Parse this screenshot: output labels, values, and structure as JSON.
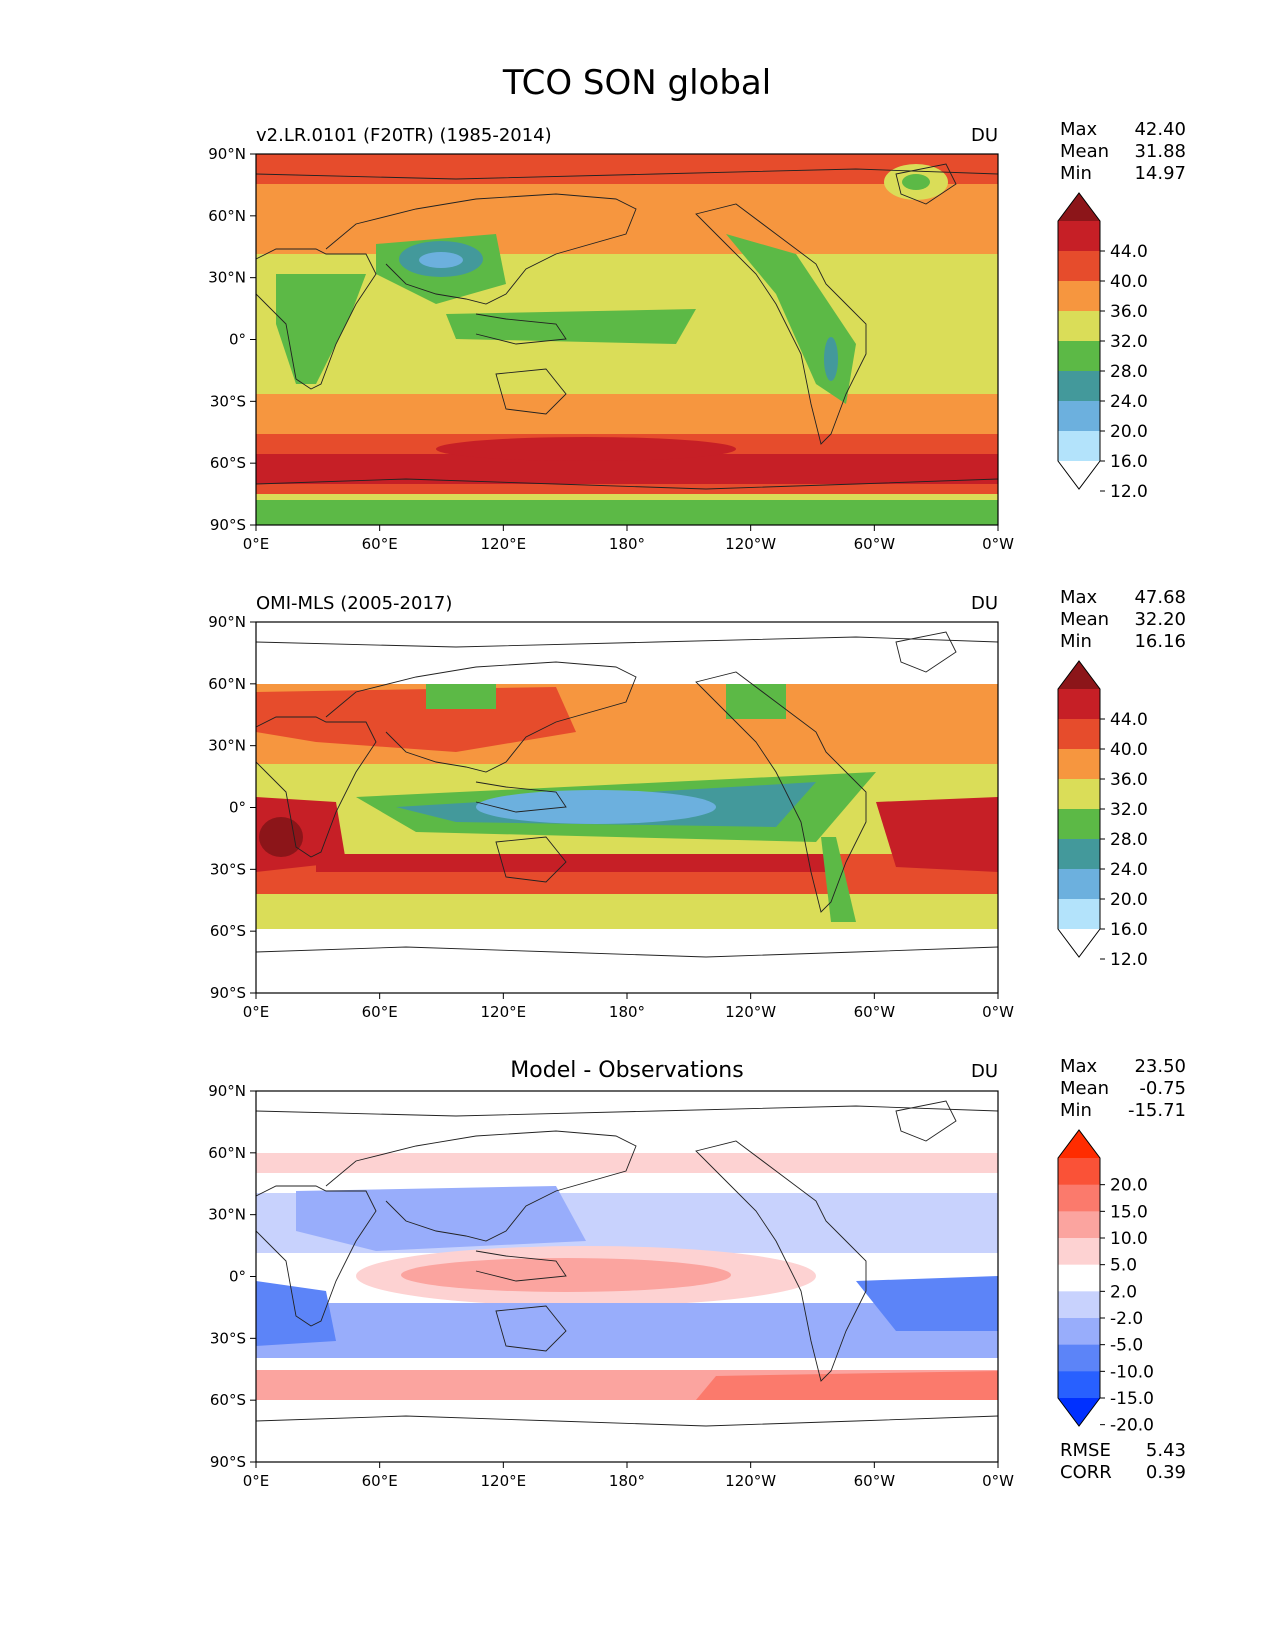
{
  "figure_title": "TCO SON global",
  "colors": {
    "model_levels": [
      "#ffffff",
      "#b3e3fb",
      "#6cb0de",
      "#43999b",
      "#5cb946",
      "#dadd58",
      "#f6963f",
      "#e64c2c",
      "#c61f26",
      "#8c1519"
    ],
    "diff_levels": [
      "#0030ff",
      "#2860ff",
      "#5c84f8",
      "#98adfb",
      "#c8d2fd",
      "#ffffff",
      "#fdd2d2",
      "#fba49f",
      "#fb7a6c",
      "#fa5237",
      "#ff2c00"
    ],
    "coast": "#222222",
    "axis": "#000000"
  },
  "chart_data": [
    {
      "type": "heatmap",
      "title": "v2.LR.0101 (F20TR) (1985-2014)",
      "units": "DU",
      "stats": [
        {
          "label": "Max",
          "value": "42.40"
        },
        {
          "label": "Mean",
          "value": "31.88"
        },
        {
          "label": "Min",
          "value": "14.97"
        }
      ],
      "colorbar_ticks": [
        "44.0",
        "40.0",
        "36.0",
        "32.0",
        "28.0",
        "24.0",
        "20.0",
        "16.0",
        "12.0"
      ],
      "colorbar_levels": [
        12,
        16,
        20,
        24,
        28,
        32,
        36,
        40,
        44
      ],
      "xticks": [
        "0°E",
        "60°E",
        "120°E",
        "180°",
        "120°W",
        "60°W",
        "0°W"
      ],
      "yticks": [
        "90°N",
        "60°N",
        "30°N",
        "0°",
        "30°S",
        "60°S",
        "90°S"
      ],
      "xlim": [
        0,
        360
      ],
      "ylim": [
        -90,
        90
      ]
    },
    {
      "type": "heatmap",
      "title": "OMI-MLS (2005-2017)",
      "units": "DU",
      "stats": [
        {
          "label": "Max",
          "value": "47.68"
        },
        {
          "label": "Mean",
          "value": "32.20"
        },
        {
          "label": "Min",
          "value": "16.16"
        }
      ],
      "colorbar_ticks": [
        "44.0",
        "40.0",
        "36.0",
        "32.0",
        "28.0",
        "24.0",
        "20.0",
        "16.0",
        "12.0"
      ],
      "colorbar_levels": [
        12,
        16,
        20,
        24,
        28,
        32,
        36,
        40,
        44
      ],
      "xticks": [
        "0°E",
        "60°E",
        "120°E",
        "180°",
        "120°W",
        "60°W",
        "0°W"
      ],
      "yticks": [
        "90°N",
        "60°N",
        "30°N",
        "0°",
        "30°S",
        "60°S",
        "90°S"
      ],
      "xlim": [
        0,
        360
      ],
      "ylim": [
        -90,
        90
      ],
      "data_lat_range": [
        -60,
        60
      ]
    },
    {
      "type": "heatmap",
      "title": "Model - Observations",
      "units": "DU",
      "stats": [
        {
          "label": "Max",
          "value": "23.50"
        },
        {
          "label": "Mean",
          "value": "-0.75"
        },
        {
          "label": "Min",
          "value": "-15.71"
        }
      ],
      "colorbar_ticks": [
        "20.0",
        "15.0",
        "10.0",
        "5.0",
        "2.0",
        "-2.0",
        "-5.0",
        "-10.0",
        "-15.0",
        "-20.0"
      ],
      "colorbar_levels": [
        -20,
        -15,
        -10,
        -5,
        -2,
        2,
        5,
        10,
        15,
        20
      ],
      "xticks": [
        "0°E",
        "60°E",
        "120°E",
        "180°",
        "120°W",
        "60°W",
        "0°W"
      ],
      "yticks": [
        "90°N",
        "60°N",
        "30°N",
        "0°",
        "30°S",
        "60°S",
        "90°S"
      ],
      "xlim": [
        0,
        360
      ],
      "ylim": [
        -90,
        90
      ],
      "data_lat_range": [
        -60,
        60
      ],
      "metrics": [
        {
          "label": "RMSE",
          "value": "5.43"
        },
        {
          "label": "CORR",
          "value": "0.39"
        }
      ]
    }
  ]
}
